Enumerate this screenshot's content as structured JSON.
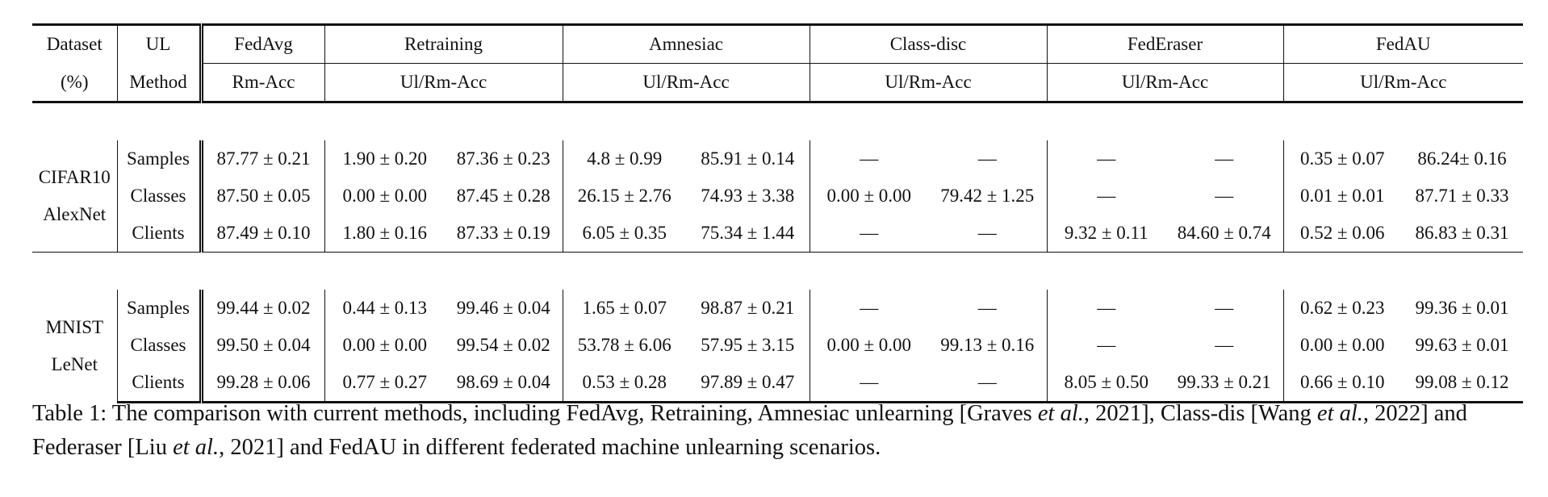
{
  "table": {
    "header_row1": {
      "dataset": "Dataset",
      "ul": "UL",
      "methods": [
        "FedAvg",
        "Retraining",
        "Amnesiac",
        "Class-disc",
        "FedEraser",
        "FedAU"
      ]
    },
    "header_row2": {
      "dataset_unit": "(%)",
      "ul_method": "Method",
      "metrics": [
        "Rm-Acc",
        "Ul/Rm-Acc",
        "Ul/Rm-Acc",
        "Ul/Rm-Acc",
        "Ul/Rm-Acc",
        "Ul/Rm-Acc"
      ]
    },
    "sections": [
      {
        "dataset_line1": "CIFAR10",
        "dataset_line2": "AlexNet",
        "rows": [
          {
            "method": "Samples",
            "cells": [
              "87.77 ± 0.21",
              "1.90 ± 0.20",
              "87.36 ± 0.23",
              "4.8 ± 0.99",
              "85.91 ± 0.14",
              "—",
              "—",
              "—",
              "—",
              "0.35 ± 0.07",
              "86.24± 0.16"
            ]
          },
          {
            "method": "Classes",
            "cells": [
              "87.50 ± 0.05",
              "0.00 ± 0.00",
              "87.45 ± 0.28",
              "26.15 ± 2.76",
              "74.93 ± 3.38",
              "0.00 ± 0.00",
              "79.42 ± 1.25",
              "—",
              "—",
              "0.01 ± 0.01",
              "87.71 ± 0.33"
            ]
          },
          {
            "method": "Clients",
            "cells": [
              "87.49 ± 0.10",
              "1.80 ± 0.16",
              "87.33 ± 0.19",
              "6.05 ± 0.35",
              "75.34 ± 1.44",
              "—",
              "—",
              "9.32 ± 0.11",
              "84.60 ± 0.74",
              "0.52 ± 0.06",
              "86.83 ± 0.31"
            ]
          }
        ]
      },
      {
        "dataset_line1": "MNIST",
        "dataset_line2": "LeNet",
        "rows": [
          {
            "method": "Samples",
            "cells": [
              "99.44 ± 0.02",
              "0.44 ± 0.13",
              "99.46 ± 0.04",
              "1.65 ± 0.07",
              "98.87 ± 0.21",
              "—",
              "—",
              "—",
              "—",
              "0.62 ± 0.23",
              "99.36 ± 0.01"
            ]
          },
          {
            "method": "Classes",
            "cells": [
              "99.50 ± 0.04",
              "0.00 ± 0.00",
              "99.54 ± 0.02",
              "53.78 ± 6.06",
              "57.95 ± 3.15",
              "0.00 ± 0.00",
              "99.13 ± 0.16",
              "—",
              "—",
              "0.00 ± 0.00",
              "99.63 ± 0.01"
            ]
          },
          {
            "method": "Clients",
            "cells": [
              "99.28 ± 0.06",
              "0.77 ± 0.27",
              "98.69 ± 0.04",
              "0.53 ± 0.28",
              "97.89 ± 0.47",
              "—",
              "—",
              "8.05 ± 0.50",
              "99.33 ± 0.21",
              "0.66 ± 0.10",
              "99.08 ± 0.12"
            ]
          }
        ]
      }
    ]
  },
  "caption": {
    "part1": "Table 1: The comparison with current methods, including FedAvg, Retraining, Amnesiac unlearning [Graves ",
    "etal1": "et al.",
    "part2": ", 2021], Class-dis [Wang ",
    "etal2": "et al.",
    "part3": ", 2022] and Federaser [Liu ",
    "etal3": "et al.",
    "part4": ", 2021] and FedAU in different federated machine unlearning scenarios."
  }
}
